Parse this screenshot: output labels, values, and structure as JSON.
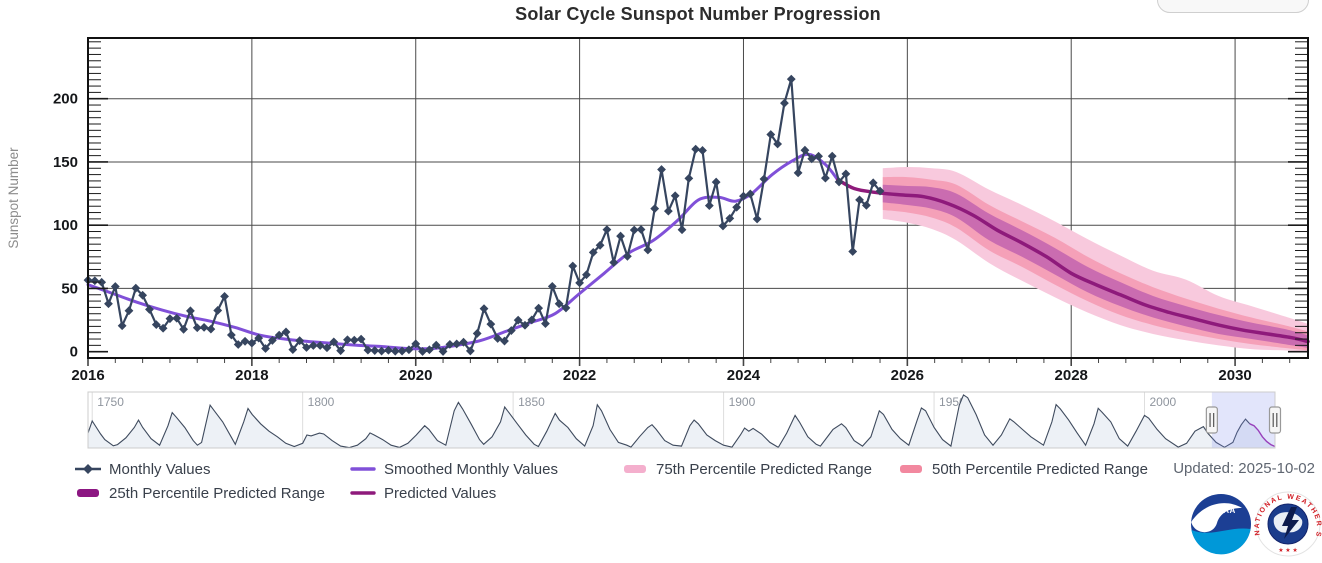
{
  "title": "Solar Cycle Sunspot Number Progression",
  "updated_label": "Updated: 2025-10-02",
  "legend": {
    "row1": [
      {
        "id": "monthly",
        "label": "Monthly Values",
        "marker": "line-diamond",
        "color": "#36455f"
      },
      {
        "id": "smoothed",
        "label": "Smoothed Monthly Values",
        "marker": "line",
        "color": "#8050d8"
      },
      {
        "id": "p75",
        "label": "75th Percentile Predicted Range",
        "marker": "swatch",
        "color": "#f4afcd"
      },
      {
        "id": "p50",
        "label": "50th Percentile Predicted Range",
        "marker": "swatch",
        "color": "#f2889f"
      }
    ],
    "row2": [
      {
        "id": "p25",
        "label": "25th Percentile Predicted Range",
        "marker": "swatch",
        "color": "#8c1782"
      },
      {
        "id": "predicted",
        "label": "Predicted Values",
        "marker": "line",
        "color": "#8e1a7b"
      }
    ]
  },
  "colors": {
    "monthly": "#36455f",
    "smoothed": "#8050d8",
    "predicted": "#8e1a7b",
    "band75": "#f8c9dd",
    "band50": "#f5a0b8",
    "band25": "#ca6cb0",
    "grid": "#4a4a4a",
    "axis": "#111111",
    "tick": "#1a1a1a",
    "axis_label": "#15171a",
    "y_title": "#8c8c8c",
    "nav_line": "#3f4b5e",
    "nav_fill": "#edf1f6",
    "nav_border": "#cccccc",
    "nav_grid": "#dddddd",
    "nav_label": "#8f959e",
    "nav_selection": "rgba(124,137,235,0.22)",
    "nav_predicted": "#a12cae",
    "noaa_dark_blue": "#1c3f94",
    "noaa_light_blue": "#0098d8",
    "nws_red": "#d22128",
    "nws_blue": "#1b3c8c"
  },
  "chart_data": {
    "type": "line",
    "title": "Solar Cycle Sunspot Number Progression",
    "xlabel": "",
    "ylabel": "Sunspot Number",
    "xlim": [
      2016,
      2030.89
    ],
    "ylim": [
      -5,
      248
    ],
    "x_ticks": [
      2016,
      2018,
      2020,
      2022,
      2024,
      2026,
      2028,
      2030
    ],
    "y_ticks": [
      0,
      50,
      100,
      150,
      200
    ],
    "grid": true,
    "legend_position": "bottom",
    "series": [
      {
        "name": "Monthly Values",
        "style": "line+diamond",
        "x_start": 2016.0,
        "x_step": 0.083333,
        "values": [
          56.6,
          56.1,
          54.9,
          37.9,
          51.5,
          20.5,
          32.4,
          50.2,
          44.6,
          33.4,
          21.4,
          18.5,
          26.1,
          26.4,
          17.7,
          32.3,
          18.9,
          19.2,
          17.8,
          32.6,
          43.7,
          13.2,
          5.7,
          8.2,
          6.8,
          10.7,
          2.5,
          8.9,
          13.1,
          15.6,
          1.6,
          8.7,
          3.3,
          4.9,
          4.9,
          3.1,
          7.7,
          0.8,
          9.4,
          9.1,
          9.9,
          1.2,
          0.9,
          0.5,
          1.1,
          0.4,
          0.5,
          1.5,
          6.2,
          0.2,
          1.5,
          5.2,
          0.2,
          5.8,
          6.1,
          7.5,
          0.6,
          14.4,
          34.0,
          21.8,
          10.4,
          8.4,
          16.7,
          24.9,
          20.9,
          25.1,
          34.4,
          22.2,
          51.6,
          37.9,
          34.6,
          67.7,
          54.4,
          60.8,
          78.5,
          84.1,
          96.5,
          70.5,
          91.4,
          75.4,
          96.2,
          96.6,
          80.4,
          113.1,
          144.0,
          111.1,
          123.3,
          96.4,
          137.0,
          160.1,
          159.1,
          115.5,
          134.1,
          99.4,
          105.4,
          114.2,
          123.0,
          124.7,
          104.9,
          136.5,
          171.7,
          164.2,
          196.5,
          215.5,
          141.4,
          159.3,
          152.5,
          154.5,
          137.2,
          154.6,
          134.2,
          140.6,
          79.2,
          120.0,
          115.7,
          133.5,
          127.0
        ]
      },
      {
        "name": "Smoothed Monthly Values",
        "style": "smooth-line",
        "points": [
          [
            2016.0,
            53
          ],
          [
            2016.3,
            46
          ],
          [
            2016.6,
            39
          ],
          [
            2016.9,
            33
          ],
          [
            2017.2,
            28
          ],
          [
            2017.5,
            24
          ],
          [
            2017.8,
            19
          ],
          [
            2018.1,
            13
          ],
          [
            2018.4,
            10
          ],
          [
            2018.7,
            8
          ],
          [
            2019.0,
            6.5
          ],
          [
            2019.3,
            5
          ],
          [
            2019.6,
            4
          ],
          [
            2019.9,
            2.5
          ],
          [
            2020.2,
            2.5
          ],
          [
            2020.5,
            5
          ],
          [
            2020.8,
            9
          ],
          [
            2021.1,
            16
          ],
          [
            2021.4,
            23
          ],
          [
            2021.7,
            30
          ],
          [
            2022.0,
            46
          ],
          [
            2022.3,
            62
          ],
          [
            2022.6,
            78
          ],
          [
            2022.9,
            88
          ],
          [
            2023.2,
            104
          ],
          [
            2023.45,
            120
          ],
          [
            2023.7,
            122
          ],
          [
            2023.9,
            119
          ],
          [
            2024.1,
            125
          ],
          [
            2024.35,
            140
          ],
          [
            2024.6,
            151
          ],
          [
            2024.8,
            156
          ],
          [
            2025.0,
            148
          ],
          [
            2025.15,
            136
          ]
        ]
      },
      {
        "name": "Predicted Values",
        "style": "smooth-line",
        "points": [
          [
            2025.15,
            136
          ],
          [
            2025.35,
            129
          ],
          [
            2025.6,
            126
          ],
          [
            2025.9,
            124
          ],
          [
            2026.2,
            122.5
          ],
          [
            2026.5,
            117
          ],
          [
            2026.8,
            108
          ],
          [
            2027.1,
            96
          ],
          [
            2027.4,
            86
          ],
          [
            2027.7,
            75
          ],
          [
            2028.0,
            62
          ],
          [
            2028.3,
            53
          ],
          [
            2028.6,
            45
          ],
          [
            2028.9,
            37
          ],
          [
            2029.2,
            31
          ],
          [
            2029.5,
            26
          ],
          [
            2029.8,
            21
          ],
          [
            2030.1,
            17
          ],
          [
            2030.4,
            14
          ],
          [
            2030.7,
            11
          ],
          [
            2030.89,
            8
          ]
        ]
      }
    ],
    "bands": [
      {
        "name": "75th Percentile Predicted Range",
        "x": [
          2025.7,
          2026.0,
          2026.3,
          2026.6,
          2027.0,
          2027.4,
          2027.8,
          2028.2,
          2028.6,
          2029.0,
          2029.4,
          2029.8,
          2030.2,
          2030.6,
          2030.89
        ],
        "lo": [
          105,
          102,
          97,
          88,
          70,
          56,
          43,
          31,
          21,
          14,
          9,
          5,
          2,
          1,
          0
        ],
        "hi": [
          145,
          146,
          145,
          142,
          128,
          116,
          103,
          89,
          76,
          64,
          57,
          44,
          36,
          28,
          22
        ]
      },
      {
        "name": "50th Percentile Predicted Range",
        "x": [
          2025.7,
          2026.0,
          2026.3,
          2026.6,
          2027.0,
          2027.4,
          2027.8,
          2028.2,
          2028.6,
          2029.0,
          2029.4,
          2029.8,
          2030.2,
          2030.6,
          2030.89
        ],
        "lo": [
          112,
          110,
          106,
          98,
          80,
          67,
          53,
          40,
          29,
          21,
          15,
          10,
          6,
          3,
          1
        ],
        "hi": [
          138,
          138,
          136,
          132,
          116,
          103,
          90,
          75,
          62,
          51,
          42,
          34,
          27,
          21,
          16
        ]
      },
      {
        "name": "25th Percentile Predicted Range",
        "x": [
          2025.7,
          2026.0,
          2026.3,
          2026.6,
          2027.0,
          2027.4,
          2027.8,
          2028.2,
          2028.6,
          2029.0,
          2029.4,
          2029.8,
          2030.2,
          2030.6,
          2030.89
        ],
        "lo": [
          118,
          116,
          113,
          106,
          88,
          75,
          61,
          47,
          36,
          27,
          20,
          14,
          10,
          6,
          3
        ],
        "hi": [
          132,
          131,
          130,
          125,
          109,
          96,
          82,
          67,
          55,
          44,
          36,
          29,
          23,
          18,
          13
        ]
      }
    ],
    "navigator": {
      "range": [
        1749,
        2031
      ],
      "x_ticks": [
        1750,
        1800,
        1850,
        1900,
        1950,
        2000
      ],
      "selection": [
        2016,
        2031
      ],
      "predicted_from": 2025,
      "control_points": [
        [
          1749,
          80
        ],
        [
          1750,
          145
        ],
        [
          1751,
          110
        ],
        [
          1752,
          75
        ],
        [
          1753,
          45
        ],
        [
          1755,
          12
        ],
        [
          1756,
          18
        ],
        [
          1758,
          55
        ],
        [
          1760,
          110
        ],
        [
          1761,
          150
        ],
        [
          1762,
          110
        ],
        [
          1764,
          50
        ],
        [
          1766,
          15
        ],
        [
          1768,
          120
        ],
        [
          1769,
          190
        ],
        [
          1770,
          165
        ],
        [
          1772,
          110
        ],
        [
          1774,
          40
        ],
        [
          1775,
          15
        ],
        [
          1776,
          30
        ],
        [
          1778,
          230
        ],
        [
          1779,
          200
        ],
        [
          1781,
          140
        ],
        [
          1783,
          60
        ],
        [
          1784,
          20
        ],
        [
          1786,
          140
        ],
        [
          1787,
          212
        ],
        [
          1788,
          180
        ],
        [
          1790,
          130
        ],
        [
          1792,
          90
        ],
        [
          1794,
          60
        ],
        [
          1796,
          25
        ],
        [
          1798,
          8
        ],
        [
          1800,
          25
        ],
        [
          1801,
          70
        ],
        [
          1802,
          65
        ],
        [
          1804,
          80
        ],
        [
          1805,
          75
        ],
        [
          1807,
          40
        ],
        [
          1809,
          10
        ],
        [
          1811,
          2
        ],
        [
          1813,
          15
        ],
        [
          1815,
          50
        ],
        [
          1816,
          81
        ],
        [
          1817,
          70
        ],
        [
          1819,
          45
        ],
        [
          1821,
          15
        ],
        [
          1823,
          3
        ],
        [
          1825,
          25
        ],
        [
          1827,
          70
        ],
        [
          1829,
          120
        ],
        [
          1830,
          100
        ],
        [
          1832,
          40
        ],
        [
          1834,
          15
        ],
        [
          1836,
          200
        ],
        [
          1837,
          245
        ],
        [
          1838,
          210
        ],
        [
          1840,
          130
        ],
        [
          1842,
          45
        ],
        [
          1843,
          20
        ],
        [
          1845,
          60
        ],
        [
          1847,
          140
        ],
        [
          1848,
          220
        ],
        [
          1849,
          190
        ],
        [
          1851,
          130
        ],
        [
          1853,
          70
        ],
        [
          1855,
          20
        ],
        [
          1856,
          8
        ],
        [
          1858,
          90
        ],
        [
          1860,
          186
        ],
        [
          1861,
          150
        ],
        [
          1863,
          110
        ],
        [
          1865,
          50
        ],
        [
          1867,
          10
        ],
        [
          1869,
          120
        ],
        [
          1870,
          232
        ],
        [
          1871,
          200
        ],
        [
          1873,
          100
        ],
        [
          1875,
          30
        ],
        [
          1877,
          15
        ],
        [
          1878,
          5
        ],
        [
          1880,
          60
        ],
        [
          1882,
          110
        ],
        [
          1883,
          125
        ],
        [
          1884,
          100
        ],
        [
          1886,
          40
        ],
        [
          1888,
          15
        ],
        [
          1890,
          10
        ],
        [
          1892,
          120
        ],
        [
          1893,
          150
        ],
        [
          1894,
          130
        ],
        [
          1896,
          70
        ],
        [
          1898,
          40
        ],
        [
          1900,
          15
        ],
        [
          1902,
          5
        ],
        [
          1904,
          70
        ],
        [
          1905,
          107
        ],
        [
          1906,
          90
        ],
        [
          1907,
          105
        ],
        [
          1909,
          75
        ],
        [
          1911,
          30
        ],
        [
          1913,
          3
        ],
        [
          1915,
          80
        ],
        [
          1917,
          175
        ],
        [
          1918,
          140
        ],
        [
          1920,
          60
        ],
        [
          1922,
          20
        ],
        [
          1923,
          10
        ],
        [
          1925,
          70
        ],
        [
          1926,
          100
        ],
        [
          1928,
          130
        ],
        [
          1929,
          110
        ],
        [
          1931,
          40
        ],
        [
          1933,
          10
        ],
        [
          1935,
          60
        ],
        [
          1937,
          200
        ],
        [
          1938,
          180
        ],
        [
          1940,
          100
        ],
        [
          1942,
          50
        ],
        [
          1944,
          15
        ],
        [
          1946,
          150
        ],
        [
          1947,
          215
        ],
        [
          1948,
          200
        ],
        [
          1950,
          110
        ],
        [
          1952,
          45
        ],
        [
          1954,
          10
        ],
        [
          1956,
          230
        ],
        [
          1957,
          285
        ],
        [
          1958,
          270
        ],
        [
          1960,
          180
        ],
        [
          1962,
          70
        ],
        [
          1964,
          15
        ],
        [
          1966,
          70
        ],
        [
          1968,
          157
        ],
        [
          1969,
          140
        ],
        [
          1971,
          100
        ],
        [
          1973,
          60
        ],
        [
          1976,
          15
        ],
        [
          1978,
          140
        ],
        [
          1979,
          233
        ],
        [
          1980,
          210
        ],
        [
          1982,
          150
        ],
        [
          1984,
          80
        ],
        [
          1986,
          15
        ],
        [
          1988,
          130
        ],
        [
          1989,
          213
        ],
        [
          1990,
          190
        ],
        [
          1992,
          140
        ],
        [
          1994,
          50
        ],
        [
          1996,
          10
        ],
        [
          1998,
          90
        ],
        [
          2000,
          175
        ],
        [
          2001,
          160
        ],
        [
          2003,
          100
        ],
        [
          2005,
          50
        ],
        [
          2008,
          5
        ],
        [
          2010,
          25
        ],
        [
          2012,
          90
        ],
        [
          2014,
          115
        ],
        [
          2015,
          80
        ],
        [
          2017,
          30
        ],
        [
          2019,
          4
        ],
        [
          2021,
          30
        ],
        [
          2022,
          85
        ],
        [
          2023,
          125
        ],
        [
          2024,
          155
        ],
        [
          2025,
          130
        ],
        [
          2026,
          120
        ],
        [
          2027,
          95
        ],
        [
          2028,
          60
        ],
        [
          2029,
          35
        ],
        [
          2030,
          18
        ],
        [
          2031,
          8
        ]
      ]
    }
  }
}
